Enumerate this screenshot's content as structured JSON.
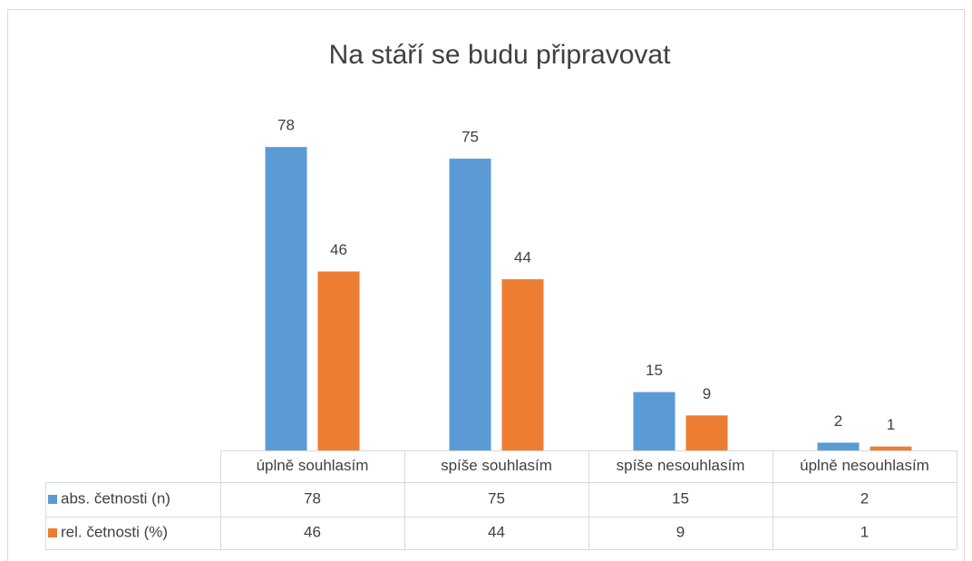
{
  "chart_data": {
    "type": "bar",
    "title": "Na stáří se budu připravovat",
    "categories": [
      "úplně souhlasím",
      "spíše souhlasím",
      "spíše nesouhlasím",
      "úplně nesouhlasím"
    ],
    "series": [
      {
        "name": "abs. četnosti (n)",
        "color": "#5b9bd5",
        "values": [
          78,
          75,
          15,
          2
        ]
      },
      {
        "name": "rel. četnosti (%)",
        "color": "#ed7d31",
        "values": [
          46,
          44,
          9,
          1
        ]
      }
    ],
    "ylim": [
      0,
      80
    ]
  }
}
